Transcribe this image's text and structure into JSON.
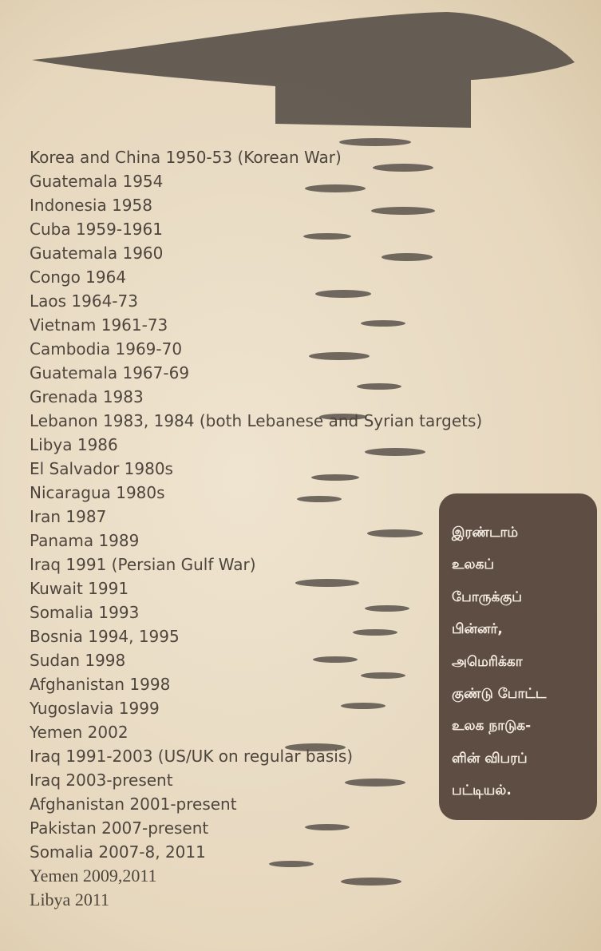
{
  "list": {
    "items": [
      "Korea and China 1950-53 (Korean War)",
      "Guatemala 1954",
      "Indonesia 1958",
      "Cuba 1959-1961",
      "Guatemala 1960",
      "Congo 1964",
      "Laos 1964-73",
      "Vietnam 1961-73",
      "Cambodia 1969-70",
      "Guatemala 1967-69",
      "Grenada 1983",
      "Lebanon 1983, 1984 (both Lebanese and Syrian targets)",
      "Libya 1986",
      "El Salvador 1980s",
      "Nicaragua 1980s",
      "Iran 1987",
      "Panama 1989",
      "Iraq 1991 (Persian Gulf War)",
      "Kuwait 1991",
      "Somalia 1993",
      "Bosnia 1994, 1995",
      "Sudan 1998",
      "Afghanistan 1998",
      "Yugoslavia 1999",
      "Yemen 2002",
      "Iraq 1991-2003 (US/UK on regular basis)",
      "Iraq 2003-present",
      "Afghanistan 2001-present",
      "Pakistan 2007-present",
      "Somalia 2007-8, 2011",
      "Yemen 2009,2011",
      "Libya 2011"
    ]
  },
  "caption": {
    "lines": [
      "இரண்டாம்",
      "உலகப்",
      "போருக்குப்",
      "பின்னர்,",
      "அமெரிக்கா",
      "குண்டு போட்ட",
      "உலக நாடுக-",
      "ளின் விபரப்",
      "பட்டியல்."
    ]
  }
}
